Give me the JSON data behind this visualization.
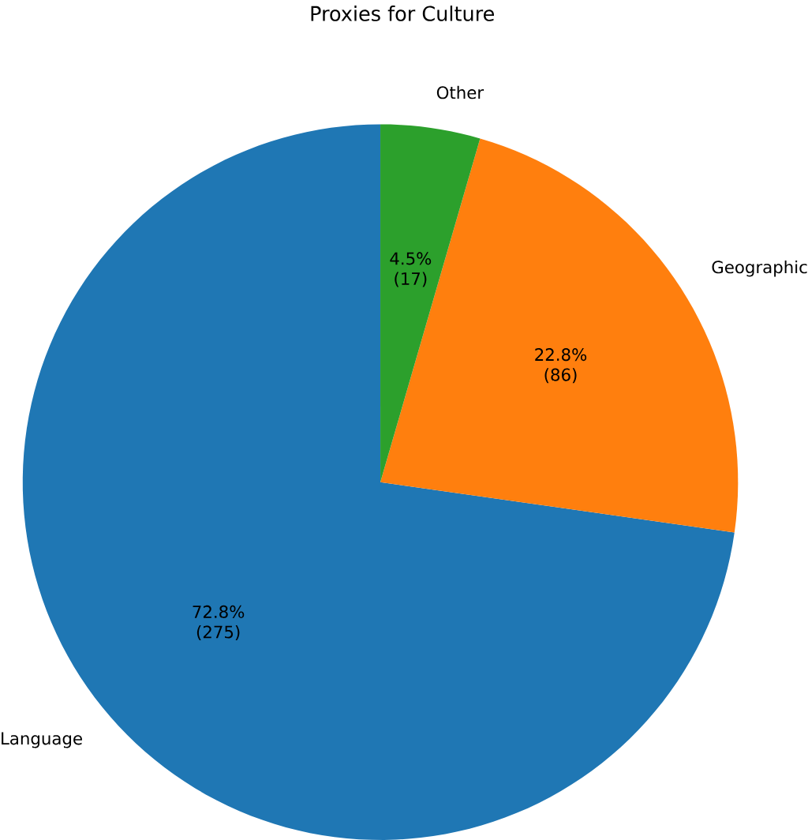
{
  "chart_data": {
    "type": "pie",
    "title": "Proxies for Culture",
    "categories": [
      "Language",
      "Geographic",
      "Other"
    ],
    "values": [
      275,
      86,
      17
    ],
    "colors": [
      "#1f77b4",
      "#ff7f0e",
      "#2ca02c"
    ],
    "value_labels": [
      "72.8% (275)",
      "22.8% (86)",
      "4.5% (17)"
    ]
  }
}
